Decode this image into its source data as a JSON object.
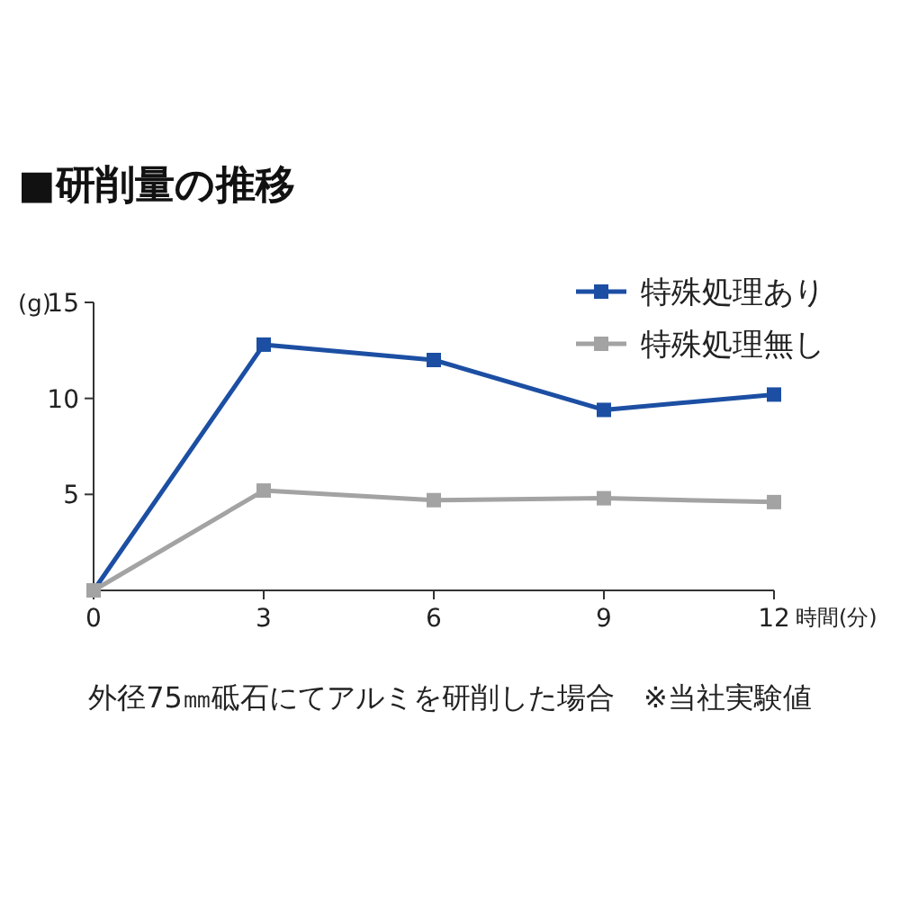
{
  "chart_data": {
    "type": "line",
    "title": "■研削量の推移",
    "ylabel": "(g)",
    "xlabel": "時間(分)",
    "x": [
      0,
      3,
      6,
      9,
      12
    ],
    "series": [
      {
        "name": "特殊処理あり",
        "color": "#1c4fa3",
        "values": [
          0,
          12.8,
          12,
          9.4,
          10.2
        ]
      },
      {
        "name": "特殊処理無し",
        "color": "#a3a3a3",
        "values": [
          0,
          5.2,
          4.7,
          4.8,
          4.6
        ]
      }
    ],
    "xlim": [
      0,
      12
    ],
    "ylim": [
      0,
      15
    ],
    "xticks": [
      0,
      3,
      6,
      9,
      12
    ],
    "yticks": [
      5,
      10,
      15
    ],
    "marker": "square",
    "legend": "top right",
    "grid": false,
    "annotations": [
      "外径75㎜砥石にてアルミを研削した場合　※当社実験値"
    ]
  }
}
